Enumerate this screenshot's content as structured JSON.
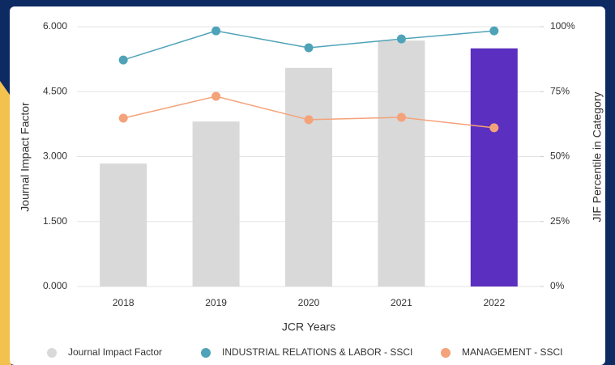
{
  "chart_data": {
    "type": "bar",
    "x_label": "JCR Years",
    "y_label": "Journal Impact Factor",
    "y2_label": "JIF Percentile in Category",
    "categories": [
      "2018",
      "2019",
      "2020",
      "2021",
      "2022"
    ],
    "series": [
      {
        "name": "Journal Impact Factor",
        "type": "bar",
        "color": "#d9d9d9",
        "bar_colors": [
          "#d9d9d9",
          "#d9d9d9",
          "#d9d9d9",
          "#d9d9d9",
          "#5b2fbf"
        ],
        "values": [
          2.84,
          3.81,
          5.05,
          5.68,
          5.5
        ]
      },
      {
        "name": "INDUSTRIAL RELATIONS & LABOR - SSCI",
        "type": "line",
        "axis": "y2",
        "color": "#4fa3b8",
        "values": [
          87.2,
          98.4,
          91.9,
          95.3,
          98.4
        ]
      },
      {
        "name": "MANAGEMENT - SSCI",
        "type": "line",
        "axis": "y2",
        "color": "#f4a27a",
        "values": [
          64.8,
          73.2,
          64.2,
          65.1,
          61.1
        ]
      }
    ],
    "ylim": [
      0,
      6
    ],
    "yticks": [
      {
        "value": 0,
        "label": "0.000"
      },
      {
        "value": 1.5,
        "label": "1.500"
      },
      {
        "value": 3,
        "label": "3.000"
      },
      {
        "value": 4.5,
        "label": "4.500"
      },
      {
        "value": 6,
        "label": "6.000"
      }
    ],
    "y2lim": [
      0,
      100
    ],
    "y2ticks": [
      {
        "value": 0,
        "label": "0%"
      },
      {
        "value": 25,
        "label": "25%"
      },
      {
        "value": 50,
        "label": "50%"
      },
      {
        "value": 75,
        "label": "75%"
      },
      {
        "value": 100,
        "label": "100%"
      }
    ],
    "grid": true
  }
}
